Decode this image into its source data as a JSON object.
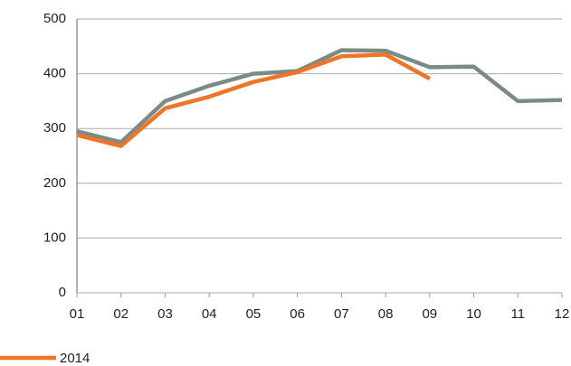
{
  "chart_data": {
    "type": "line",
    "categories": [
      "01",
      "02",
      "03",
      "04",
      "05",
      "06",
      "07",
      "08",
      "09",
      "10",
      "11",
      "12"
    ],
    "series": [
      {
        "color": "#7a8a85",
        "values": [
          295,
          275,
          350,
          378,
          400,
          405,
          443,
          442,
          412,
          413,
          350,
          352
        ]
      },
      {
        "name": "2014",
        "color": "#f07427",
        "values": [
          288,
          268,
          337,
          358,
          385,
          403,
          432,
          435,
          391,
          null,
          null,
          null
        ]
      }
    ],
    "ylim": [
      0,
      500
    ],
    "yticks": [
      0,
      100,
      200,
      300,
      400,
      500
    ],
    "grid": true,
    "legend": "bottom-left"
  }
}
